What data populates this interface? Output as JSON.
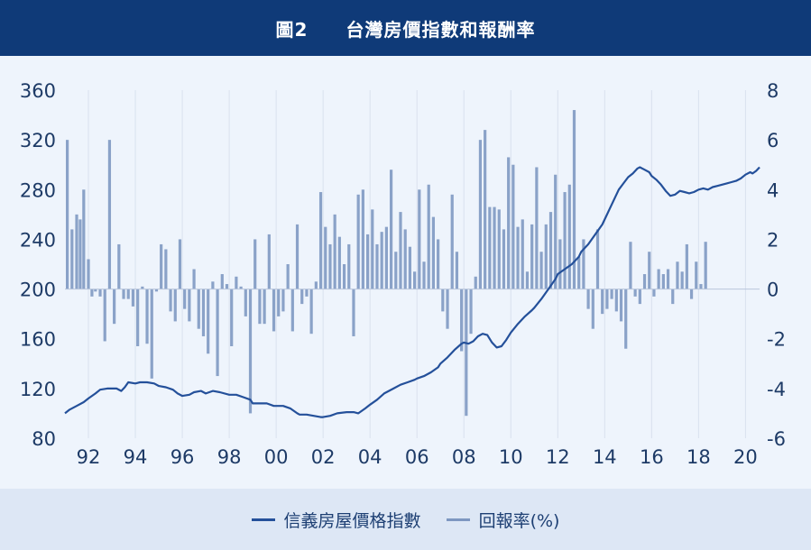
{
  "chart_data": {
    "type": "bar+line",
    "title_figure": "圖2",
    "title": "台灣房價指數和報酬率",
    "x_tick_labels": [
      "92",
      "94",
      "96",
      "98",
      "00",
      "02",
      "04",
      "06",
      "08",
      "10",
      "12",
      "14",
      "16",
      "18",
      "20"
    ],
    "x_tick_years": [
      1992,
      1994,
      1996,
      1998,
      2000,
      2002,
      2004,
      2006,
      2008,
      2010,
      2012,
      2014,
      2016,
      2018,
      2020
    ],
    "x_range": [
      1991.0,
      2020.6
    ],
    "left_axis": {
      "ticks": [
        80,
        120,
        160,
        200,
        240,
        280,
        320,
        360
      ],
      "range": [
        80,
        360
      ]
    },
    "right_axis": {
      "ticks": [
        -6,
        -4,
        -2,
        0,
        2,
        4,
        6,
        8
      ],
      "range": [
        -6,
        8
      ]
    },
    "grid": "vertical",
    "legend_position": "bottom",
    "colors": {
      "line": "#24509a",
      "bars": "#8aa2c8",
      "header": "#0f3a78"
    },
    "series": [
      {
        "name": "信義房屋價格指數",
        "axis": "left",
        "type": "line",
        "points": [
          [
            1991.0,
            100
          ],
          [
            1991.2,
            103
          ],
          [
            1991.5,
            106
          ],
          [
            1991.8,
            109
          ],
          [
            1992.0,
            112
          ],
          [
            1992.3,
            116
          ],
          [
            1992.5,
            119
          ],
          [
            1992.8,
            120
          ],
          [
            1993.0,
            120
          ],
          [
            1993.2,
            120
          ],
          [
            1993.4,
            118
          ],
          [
            1993.55,
            121
          ],
          [
            1993.7,
            125
          ],
          [
            1994.0,
            124
          ],
          [
            1994.2,
            125
          ],
          [
            1994.5,
            125
          ],
          [
            1994.8,
            124
          ],
          [
            1995.0,
            122
          ],
          [
            1995.3,
            121
          ],
          [
            1995.6,
            119
          ],
          [
            1995.8,
            116
          ],
          [
            1996.0,
            114
          ],
          [
            1996.3,
            115
          ],
          [
            1996.5,
            117
          ],
          [
            1996.8,
            118
          ],
          [
            1997.0,
            116
          ],
          [
            1997.3,
            118
          ],
          [
            1997.6,
            117
          ],
          [
            1998.0,
            115
          ],
          [
            1998.3,
            115
          ],
          [
            1998.6,
            113
          ],
          [
            1998.9,
            111
          ],
          [
            1999.0,
            108
          ],
          [
            1999.3,
            108
          ],
          [
            1999.6,
            108
          ],
          [
            1999.9,
            106
          ],
          [
            2000.0,
            106
          ],
          [
            2000.3,
            106
          ],
          [
            2000.6,
            104
          ],
          [
            2000.9,
            100
          ],
          [
            2001.0,
            99
          ],
          [
            2001.3,
            99
          ],
          [
            2001.6,
            98
          ],
          [
            2001.9,
            97
          ],
          [
            2002.0,
            97
          ],
          [
            2002.3,
            98
          ],
          [
            2002.6,
            100
          ],
          [
            2003.0,
            101
          ],
          [
            2003.3,
            101
          ],
          [
            2003.5,
            100
          ],
          [
            2003.8,
            104
          ],
          [
            2004.0,
            107
          ],
          [
            2004.3,
            111
          ],
          [
            2004.6,
            116
          ],
          [
            2005.0,
            120
          ],
          [
            2005.3,
            123
          ],
          [
            2005.6,
            125
          ],
          [
            2005.9,
            127
          ],
          [
            2006.0,
            128
          ],
          [
            2006.3,
            130
          ],
          [
            2006.6,
            133
          ],
          [
            2006.9,
            137
          ],
          [
            2007.0,
            140
          ],
          [
            2007.3,
            145
          ],
          [
            2007.6,
            151
          ],
          [
            2007.9,
            156
          ],
          [
            2008.0,
            157
          ],
          [
            2008.2,
            156
          ],
          [
            2008.4,
            158
          ],
          [
            2008.6,
            162
          ],
          [
            2008.8,
            164
          ],
          [
            2009.0,
            163
          ],
          [
            2009.2,
            157
          ],
          [
            2009.4,
            153
          ],
          [
            2009.6,
            154
          ],
          [
            2009.8,
            159
          ],
          [
            2010.0,
            165
          ],
          [
            2010.3,
            172
          ],
          [
            2010.6,
            178
          ],
          [
            2010.9,
            183
          ],
          [
            2011.0,
            185
          ],
          [
            2011.3,
            192
          ],
          [
            2011.6,
            200
          ],
          [
            2011.9,
            208
          ],
          [
            2012.0,
            212
          ],
          [
            2012.3,
            216
          ],
          [
            2012.6,
            220
          ],
          [
            2012.9,
            226
          ],
          [
            2013.0,
            230
          ],
          [
            2013.3,
            236
          ],
          [
            2013.6,
            244
          ],
          [
            2013.9,
            252
          ],
          [
            2014.0,
            256
          ],
          [
            2014.2,
            264
          ],
          [
            2014.4,
            272
          ],
          [
            2014.6,
            280
          ],
          [
            2014.8,
            285
          ],
          [
            2015.0,
            290
          ],
          [
            2015.2,
            293
          ],
          [
            2015.4,
            297
          ],
          [
            2015.5,
            298
          ],
          [
            2015.7,
            296
          ],
          [
            2015.9,
            294
          ],
          [
            2016.0,
            291
          ],
          [
            2016.2,
            288
          ],
          [
            2016.4,
            284
          ],
          [
            2016.6,
            279
          ],
          [
            2016.8,
            275
          ],
          [
            2017.0,
            276
          ],
          [
            2017.2,
            279
          ],
          [
            2017.4,
            278
          ],
          [
            2017.6,
            277
          ],
          [
            2017.8,
            278
          ],
          [
            2018.0,
            280
          ],
          [
            2018.2,
            281
          ],
          [
            2018.4,
            280
          ],
          [
            2018.6,
            282
          ],
          [
            2018.8,
            283
          ],
          [
            2019.0,
            284
          ],
          [
            2019.2,
            285
          ],
          [
            2019.4,
            286
          ],
          [
            2019.6,
            287
          ],
          [
            2019.8,
            289
          ],
          [
            2020.0,
            292
          ],
          [
            2020.2,
            294
          ],
          [
            2020.3,
            293
          ],
          [
            2020.45,
            295
          ],
          [
            2020.6,
            298
          ],
          [
            2020.9,
            302
          ],
          [
            2021.2,
            304
          ]
        ]
      },
      {
        "name": "回報率(%)",
        "axis": "right",
        "type": "bar",
        "points": [
          [
            1991.1,
            6.0
          ],
          [
            1991.3,
            2.4
          ],
          [
            1991.5,
            3.0
          ],
          [
            1991.65,
            2.8
          ],
          [
            1991.8,
            4.0
          ],
          [
            1992.0,
            1.2
          ],
          [
            1992.15,
            -0.3
          ],
          [
            1992.3,
            -0.1
          ],
          [
            1992.5,
            -0.3
          ],
          [
            1992.7,
            -2.1
          ],
          [
            1992.9,
            6.0
          ],
          [
            1993.1,
            -1.4
          ],
          [
            1993.3,
            1.8
          ],
          [
            1993.5,
            -0.4
          ],
          [
            1993.7,
            -0.4
          ],
          [
            1993.9,
            -0.7
          ],
          [
            1994.1,
            -2.3
          ],
          [
            1994.3,
            0.1
          ],
          [
            1994.5,
            -2.2
          ],
          [
            1994.7,
            -3.6
          ],
          [
            1994.9,
            -0.1
          ],
          [
            1995.1,
            1.8
          ],
          [
            1995.3,
            1.6
          ],
          [
            1995.5,
            -0.9
          ],
          [
            1995.7,
            -1.3
          ],
          [
            1995.9,
            2.0
          ],
          [
            1996.1,
            -0.8
          ],
          [
            1996.3,
            -1.3
          ],
          [
            1996.5,
            0.8
          ],
          [
            1996.7,
            -1.6
          ],
          [
            1996.9,
            -1.9
          ],
          [
            1997.1,
            -2.6
          ],
          [
            1997.3,
            0.3
          ],
          [
            1997.5,
            -3.5
          ],
          [
            1997.7,
            0.6
          ],
          [
            1997.9,
            0.2
          ],
          [
            1998.1,
            -2.3
          ],
          [
            1998.3,
            0.5
          ],
          [
            1998.5,
            0.1
          ],
          [
            1998.7,
            -1.1
          ],
          [
            1998.9,
            -5.0
          ],
          [
            1999.1,
            2.0
          ],
          [
            1999.3,
            -1.4
          ],
          [
            1999.5,
            -1.4
          ],
          [
            1999.7,
            2.2
          ],
          [
            1999.9,
            -1.7
          ],
          [
            2000.1,
            -1.1
          ],
          [
            2000.3,
            -0.9
          ],
          [
            2000.5,
            1.0
          ],
          [
            2000.7,
            -1.7
          ],
          [
            2000.9,
            2.6
          ],
          [
            2001.1,
            -0.6
          ],
          [
            2001.3,
            -0.3
          ],
          [
            2001.5,
            -1.8
          ],
          [
            2001.7,
            0.3
          ],
          [
            2001.9,
            3.9
          ],
          [
            2002.1,
            2.5
          ],
          [
            2002.3,
            1.8
          ],
          [
            2002.5,
            3.0
          ],
          [
            2002.7,
            2.1
          ],
          [
            2002.9,
            1.0
          ],
          [
            2003.1,
            1.8
          ],
          [
            2003.3,
            -1.9
          ],
          [
            2003.5,
            3.8
          ],
          [
            2003.7,
            4.0
          ],
          [
            2003.9,
            2.2
          ],
          [
            2004.1,
            3.2
          ],
          [
            2004.3,
            1.8
          ],
          [
            2004.5,
            2.3
          ],
          [
            2004.7,
            2.5
          ],
          [
            2004.9,
            4.8
          ],
          [
            2005.1,
            1.5
          ],
          [
            2005.3,
            3.1
          ],
          [
            2005.5,
            2.4
          ],
          [
            2005.7,
            1.7
          ],
          [
            2005.9,
            0.7
          ],
          [
            2006.1,
            4.0
          ],
          [
            2006.3,
            1.1
          ],
          [
            2006.5,
            4.2
          ],
          [
            2006.7,
            2.9
          ],
          [
            2006.9,
            2.0
          ],
          [
            2007.1,
            -0.9
          ],
          [
            2007.3,
            -1.6
          ],
          [
            2007.5,
            3.8
          ],
          [
            2007.7,
            1.5
          ],
          [
            2007.9,
            -2.5
          ],
          [
            2008.1,
            -5.1
          ],
          [
            2008.3,
            -1.8
          ],
          [
            2008.5,
            0.5
          ],
          [
            2008.7,
            6.0
          ],
          [
            2008.9,
            6.4
          ],
          [
            2009.1,
            3.3
          ],
          [
            2009.3,
            3.3
          ],
          [
            2009.5,
            3.2
          ],
          [
            2009.7,
            2.4
          ],
          [
            2009.9,
            5.3
          ],
          [
            2010.1,
            5.0
          ],
          [
            2010.3,
            2.5
          ],
          [
            2010.5,
            2.8
          ],
          [
            2010.7,
            0.7
          ],
          [
            2010.9,
            2.6
          ],
          [
            2011.1,
            4.9
          ],
          [
            2011.3,
            1.5
          ],
          [
            2011.5,
            2.6
          ],
          [
            2011.7,
            3.1
          ],
          [
            2011.9,
            4.6
          ],
          [
            2012.1,
            2.0
          ],
          [
            2012.3,
            3.9
          ],
          [
            2012.5,
            4.2
          ],
          [
            2012.7,
            7.2
          ],
          [
            2012.9,
            1.3
          ],
          [
            2013.1,
            2.0
          ],
          [
            2013.3,
            -0.8
          ],
          [
            2013.5,
            -1.6
          ],
          [
            2013.7,
            2.4
          ],
          [
            2013.9,
            -1.0
          ],
          [
            2014.1,
            -0.8
          ],
          [
            2014.3,
            -0.4
          ],
          [
            2014.5,
            -0.9
          ],
          [
            2014.7,
            -1.3
          ],
          [
            2014.9,
            -2.4
          ],
          [
            2015.1,
            1.9
          ],
          [
            2015.3,
            -0.3
          ],
          [
            2015.5,
            -0.6
          ],
          [
            2015.7,
            0.6
          ],
          [
            2015.9,
            1.5
          ],
          [
            2016.1,
            -0.3
          ],
          [
            2016.3,
            0.8
          ],
          [
            2016.5,
            0.6
          ],
          [
            2016.7,
            0.8
          ],
          [
            2016.9,
            -0.6
          ],
          [
            2017.1,
            1.1
          ],
          [
            2017.3,
            0.7
          ],
          [
            2017.5,
            1.8
          ],
          [
            2017.7,
            -0.4
          ],
          [
            2017.9,
            1.1
          ],
          [
            2018.1,
            0.2
          ],
          [
            2018.3,
            1.9
          ]
        ]
      }
    ]
  },
  "legend": {
    "line_label": "信義房屋價格指數",
    "bar_label": "回報率(%)"
  }
}
